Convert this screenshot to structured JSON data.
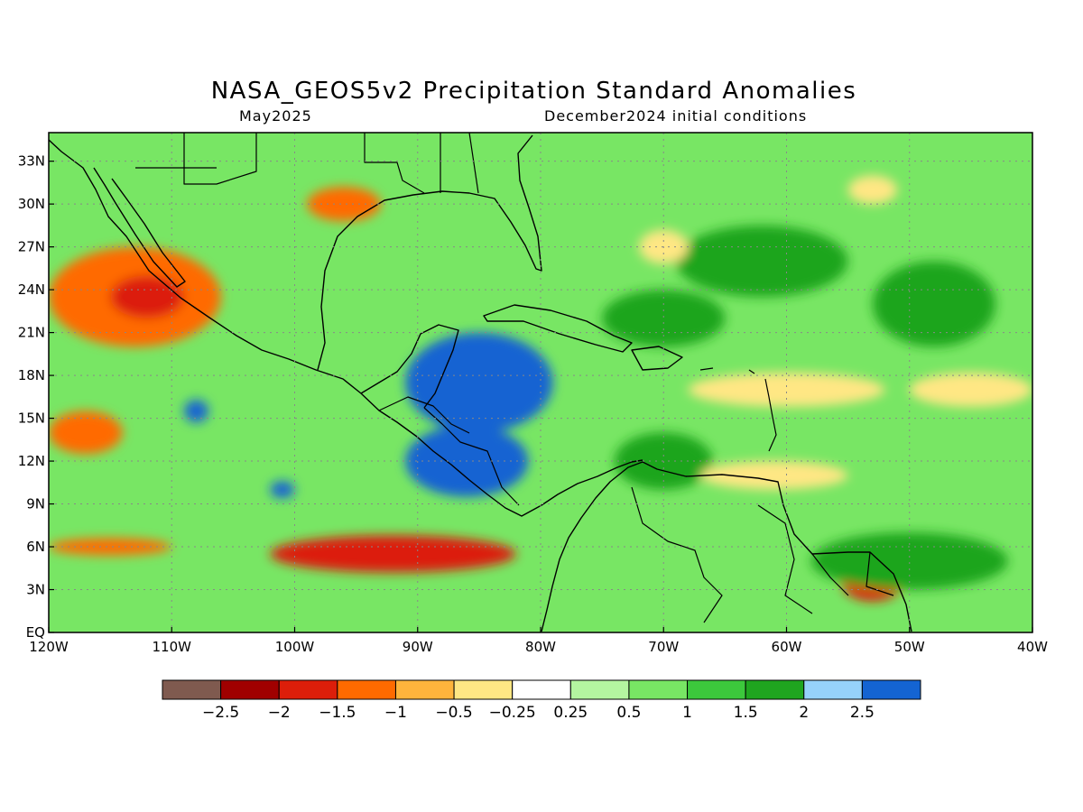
{
  "header": {
    "title": "NASA_GEOS5v2 Precipitation Standard Anomalies",
    "valid_month": "May2025",
    "init_conditions": "December2024 initial conditions"
  },
  "map": {
    "lon_range": [
      -120,
      -40
    ],
    "lat_range": [
      0,
      35
    ],
    "lat_ticks": [
      {
        "value": 33,
        "label": "33N"
      },
      {
        "value": 30,
        "label": "30N"
      },
      {
        "value": 27,
        "label": "27N"
      },
      {
        "value": 24,
        "label": "24N"
      },
      {
        "value": 21,
        "label": "21N"
      },
      {
        "value": 18,
        "label": "18N"
      },
      {
        "value": 15,
        "label": "15N"
      },
      {
        "value": 12,
        "label": "12N"
      },
      {
        "value": 9,
        "label": "9N"
      },
      {
        "value": 6,
        "label": "6N"
      },
      {
        "value": 3,
        "label": "3N"
      },
      {
        "value": 0,
        "label": "EQ"
      }
    ],
    "lon_ticks": [
      {
        "value": -120,
        "label": "120W"
      },
      {
        "value": -110,
        "label": "110W"
      },
      {
        "value": -100,
        "label": "100W"
      },
      {
        "value": -90,
        "label": "90W"
      },
      {
        "value": -80,
        "label": "80W"
      },
      {
        "value": -70,
        "label": "70W"
      },
      {
        "value": -60,
        "label": "60W"
      },
      {
        "value": -50,
        "label": "50W"
      },
      {
        "value": -40,
        "label": "40W"
      }
    ],
    "anomaly_regions": [
      {
        "lon": -113,
        "lat": 23.5,
        "rlon": 7,
        "rlat": 3.5,
        "level": -1.5
      },
      {
        "lon": -112,
        "lat": 23.5,
        "rlon": 3,
        "rlat": 1.5,
        "level": -2
      },
      {
        "lon": -117,
        "lat": 14,
        "rlon": 3,
        "rlat": 1.5,
        "level": -1.5
      },
      {
        "lon": -92,
        "lat": 5.5,
        "rlon": 10,
        "rlat": 1.3,
        "level": -2
      },
      {
        "lon": -115,
        "lat": 6,
        "rlon": 5,
        "rlat": 0.6,
        "level": -1.5
      },
      {
        "lon": -53,
        "lat": 3.5,
        "rlon": 2.5,
        "rlat": 1.3,
        "level": -2
      },
      {
        "lon": -96,
        "lat": 30,
        "rlon": 3,
        "rlat": 1.2,
        "level": -1.5
      },
      {
        "lon": -85,
        "lat": 17.5,
        "rlon": 6,
        "rlat": 3.5,
        "level": 2.5
      },
      {
        "lon": -86,
        "lat": 12,
        "rlon": 5,
        "rlat": 2.5,
        "level": 2.5
      },
      {
        "lon": -108,
        "lat": 15.5,
        "rlon": 1,
        "rlat": 0.8,
        "level": 2.5
      },
      {
        "lon": -101,
        "lat": 10,
        "rlon": 1,
        "rlat": 0.6,
        "level": 2.5
      },
      {
        "lon": -62,
        "lat": 26,
        "rlon": 7,
        "rlat": 2.5,
        "level": 1.5
      },
      {
        "lon": -48,
        "lat": 23,
        "rlon": 5,
        "rlat": 3,
        "level": 1.5
      },
      {
        "lon": -70,
        "lat": 12,
        "rlon": 4,
        "rlat": 2,
        "level": 1.5
      },
      {
        "lon": -50,
        "lat": 5,
        "rlon": 8,
        "rlat": 2,
        "level": 1.5
      },
      {
        "lon": -70,
        "lat": 22,
        "rlon": 5,
        "rlat": 2,
        "level": 1.5
      },
      {
        "lon": -60,
        "lat": 17,
        "rlon": 8,
        "rlat": 1.2,
        "level": -0.5
      },
      {
        "lon": -45,
        "lat": 17,
        "rlon": 5,
        "rlat": 1.2,
        "level": -0.5
      },
      {
        "lon": -70,
        "lat": 27,
        "rlon": 2,
        "rlat": 1.2,
        "level": -0.5
      },
      {
        "lon": -53,
        "lat": 31,
        "rlon": 2,
        "rlat": 1,
        "level": -0.5
      },
      {
        "lon": -61,
        "lat": 11,
        "rlon": 6,
        "rlat": 1,
        "level": -0.5
      }
    ]
  },
  "colorbar": {
    "colors": [
      "#7f5a4f",
      "#a00000",
      "#dc1e0a",
      "#ff6a00",
      "#ffb43c",
      "#ffe784",
      "#ffffff",
      "#b4f5a0",
      "#78e664",
      "#3cc83c",
      "#1fa51f",
      "#96d2fa",
      "#1464d2"
    ],
    "labels": [
      "-2.5",
      "-2",
      "-1.5",
      "-1",
      "-0.5",
      "-0.25",
      "0.25",
      "0.5",
      "1",
      "1.5",
      "2",
      "2.5"
    ]
  }
}
